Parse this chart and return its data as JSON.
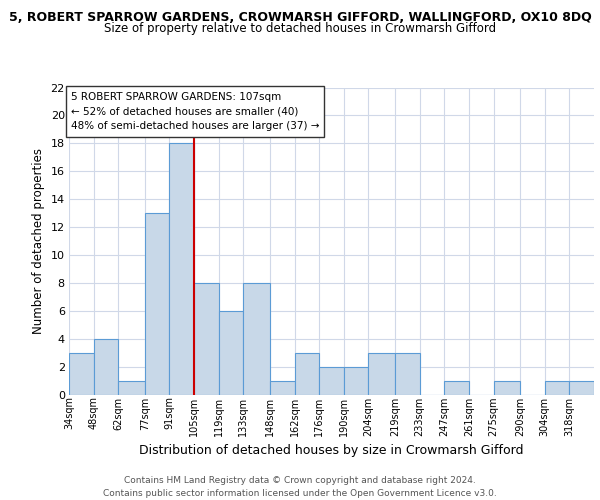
{
  "title_top": "5, ROBERT SPARROW GARDENS, CROWMARSH GIFFORD, WALLINGFORD, OX10 8DQ",
  "title_sub": "Size of property relative to detached houses in Crowmarsh Gifford",
  "xlabel": "Distribution of detached houses by size in Crowmarsh Gifford",
  "ylabel": "Number of detached properties",
  "bin_labels": [
    "34sqm",
    "48sqm",
    "62sqm",
    "77sqm",
    "91sqm",
    "105sqm",
    "119sqm",
    "133sqm",
    "148sqm",
    "162sqm",
    "176sqm",
    "190sqm",
    "204sqm",
    "219sqm",
    "233sqm",
    "247sqm",
    "261sqm",
    "275sqm",
    "290sqm",
    "304sqm",
    "318sqm"
  ],
  "bin_edges": [
    34,
    48,
    62,
    77,
    91,
    105,
    119,
    133,
    148,
    162,
    176,
    190,
    204,
    219,
    233,
    247,
    261,
    275,
    290,
    304,
    318,
    332
  ],
  "counts": [
    3,
    4,
    1,
    13,
    18,
    8,
    6,
    8,
    1,
    3,
    2,
    2,
    3,
    3,
    0,
    1,
    0,
    1,
    0,
    1,
    1
  ],
  "bar_color": "#c8d8e8",
  "bar_edge_color": "#5b9bd5",
  "vline_x": 105,
  "vline_color": "#cc0000",
  "annotation_title": "5 ROBERT SPARROW GARDENS: 107sqm",
  "annotation_line1": "← 52% of detached houses are smaller (40)",
  "annotation_line2": "48% of semi-detached houses are larger (37) →",
  "ylim": [
    0,
    22
  ],
  "yticks": [
    0,
    2,
    4,
    6,
    8,
    10,
    12,
    14,
    16,
    18,
    20,
    22
  ],
  "background_color": "#ffffff",
  "grid_color": "#d0d8e8",
  "footer1": "Contains HM Land Registry data © Crown copyright and database right 2024.",
  "footer2": "Contains public sector information licensed under the Open Government Licence v3.0."
}
